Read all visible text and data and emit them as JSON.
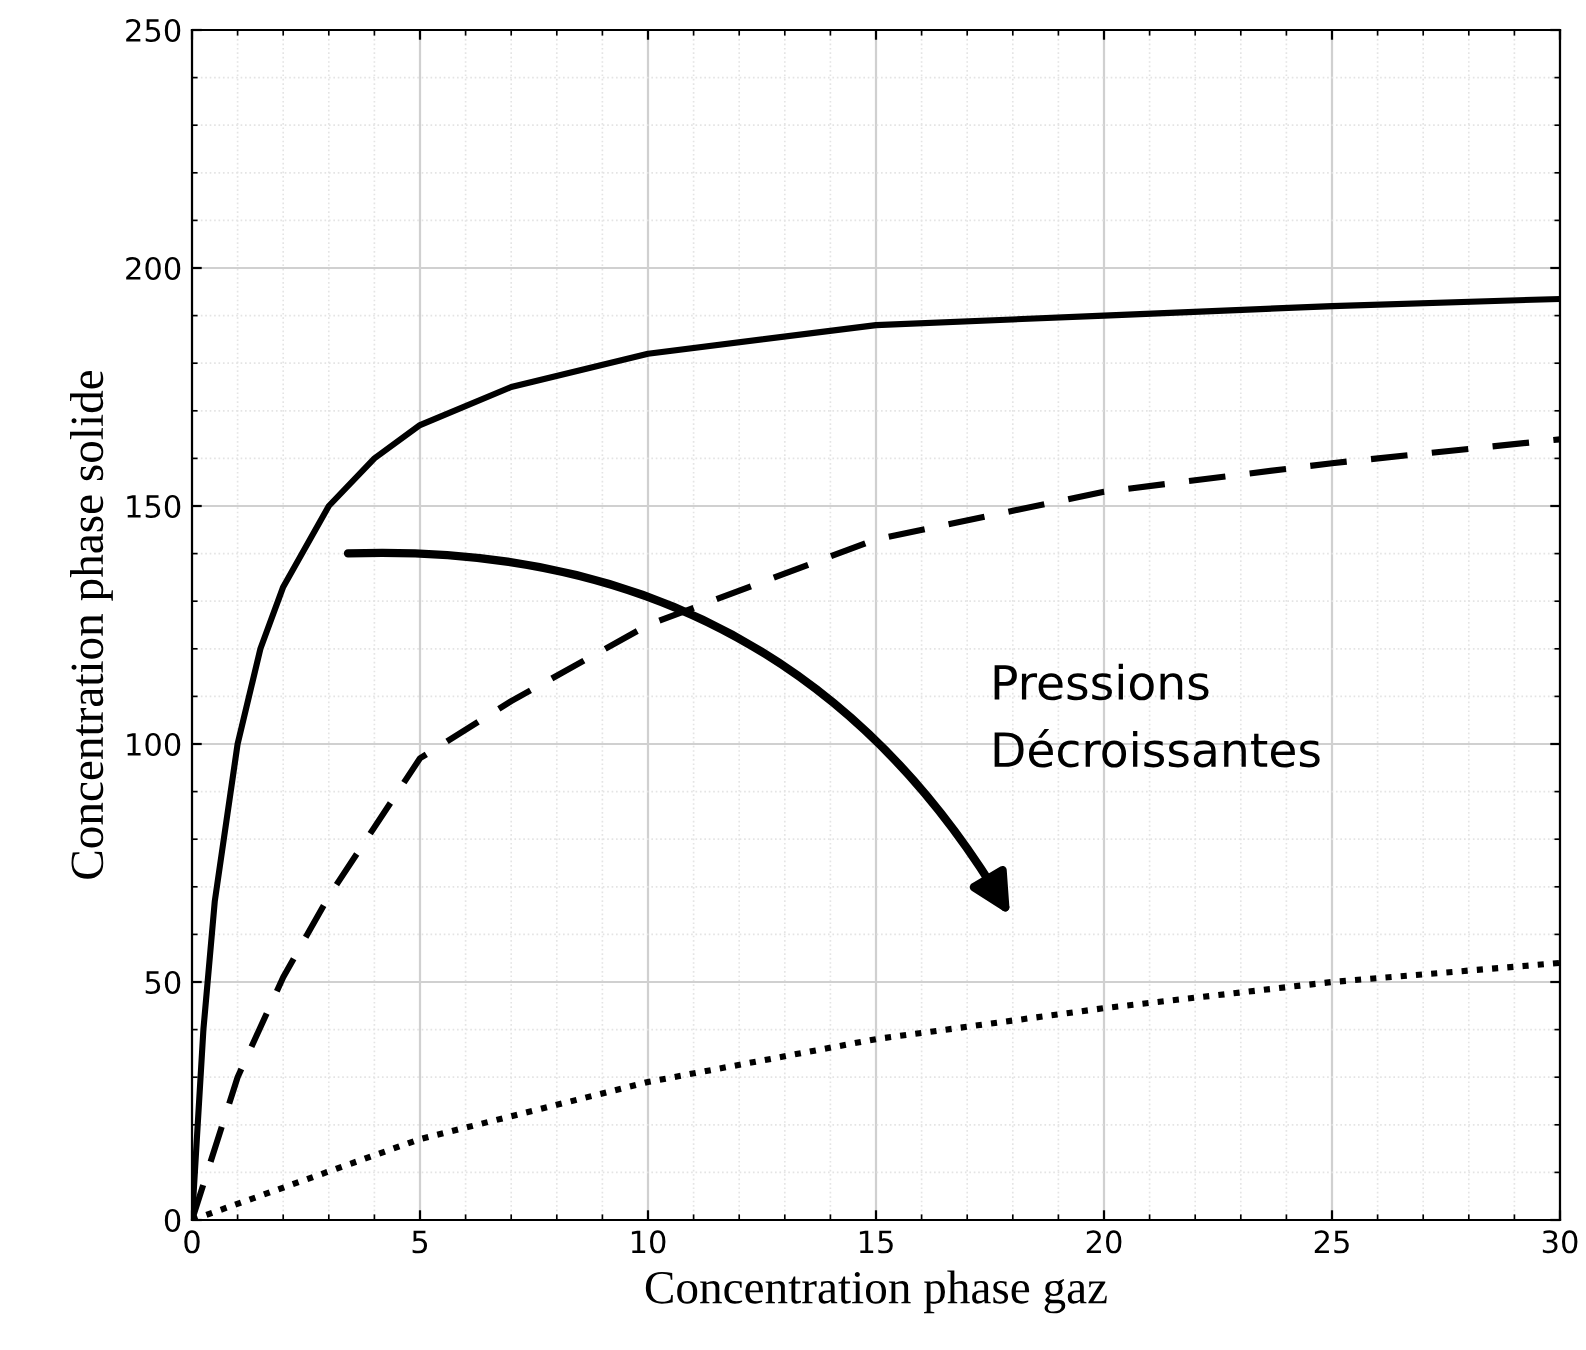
{
  "chart_data": {
    "type": "line",
    "xlabel": "Concentration phase gaz",
    "ylabel": "Concentration phase solide",
    "xlim": [
      0,
      30
    ],
    "ylim": [
      0,
      250
    ],
    "xticks": [
      0,
      5,
      10,
      15,
      20,
      25,
      30
    ],
    "yticks": [
      0,
      50,
      100,
      150,
      200,
      250
    ],
    "grid": true,
    "marker": "none",
    "annotations": [
      "Pressions\nDécroissantes"
    ],
    "series": [
      {
        "color": "#000000",
        "line_style": "solid",
        "x": [
          0,
          0.25,
          0.5,
          1,
          1.5,
          2,
          3,
          4,
          5,
          7,
          10,
          15,
          20,
          25,
          30
        ],
        "values": [
          0,
          40,
          67,
          100,
          120,
          133,
          150,
          160,
          167,
          175,
          182,
          188,
          190,
          192,
          193.5
        ]
      },
      {
        "color": "#000000",
        "line_style": "dashed",
        "x": [
          0,
          1,
          2,
          3,
          5,
          7,
          10,
          15,
          20,
          25,
          30
        ],
        "values": [
          0,
          30,
          51,
          68,
          97,
          109,
          125,
          143,
          153,
          159,
          164
        ]
      },
      {
        "color": "#000000",
        "line_style": "dotted",
        "x": [
          0,
          5,
          10,
          15,
          20,
          25,
          30
        ],
        "values": [
          0,
          17,
          29,
          38,
          44.5,
          50,
          54
        ]
      }
    ]
  }
}
